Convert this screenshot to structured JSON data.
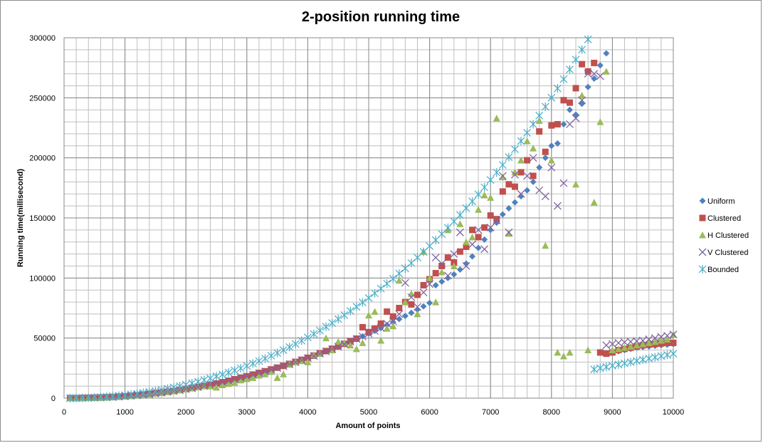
{
  "chart_data": {
    "type": "scatter",
    "title": "2-position running  time",
    "xlabel": "Amount of points",
    "ylabel": "Running time(millisecond)",
    "xlim": [
      0,
      10000
    ],
    "ylim": [
      0,
      300000
    ],
    "x_ticks": [
      0,
      1000,
      2000,
      3000,
      4000,
      5000,
      6000,
      7000,
      8000,
      9000,
      10000
    ],
    "x_tick_labels": [
      "0",
      "1000",
      "2000",
      "3000",
      "4000",
      "5000",
      "6000",
      "7000",
      "8000",
      "9000",
      "10000"
    ],
    "y_ticks": [
      0,
      50000,
      100000,
      150000,
      200000,
      250000,
      300000
    ],
    "y_tick_labels": [
      "0",
      "50000",
      "100000",
      "150000",
      "200000",
      "250000",
      "300000"
    ],
    "grid": true,
    "legend_position": "right",
    "series": [
      {
        "name": "Uniform",
        "marker": "diamond",
        "color": "#4f81bd",
        "x": [
          100,
          200,
          300,
          400,
          500,
          600,
          700,
          800,
          900,
          1000,
          1100,
          1200,
          1300,
          1400,
          1500,
          1600,
          1700,
          1800,
          1900,
          2000,
          2100,
          2200,
          2300,
          2400,
          2500,
          2600,
          2700,
          2800,
          2900,
          3000,
          3100,
          3200,
          3300,
          3400,
          3500,
          3600,
          3700,
          3800,
          3900,
          4000,
          4100,
          4200,
          4300,
          4400,
          4500,
          4600,
          4700,
          4800,
          4900,
          5000,
          5100,
          5200,
          5300,
          5400,
          5500,
          5600,
          5700,
          5800,
          5900,
          6000,
          6100,
          6200,
          6300,
          6400,
          6500,
          6600,
          6700,
          6800,
          6900,
          7000,
          7100,
          7200,
          7300,
          7400,
          7500,
          7600,
          7700,
          7800,
          7900,
          8000,
          8100,
          8200,
          8300,
          8400,
          8500,
          8600,
          8700,
          8800,
          8900,
          9000,
          9100,
          9200,
          9300,
          9400,
          9500,
          9600,
          9700,
          9800,
          9900,
          10000
        ],
        "y": [
          0,
          0,
          100,
          200,
          300,
          500,
          700,
          900,
          1200,
          1500,
          1900,
          2300,
          2800,
          3300,
          3900,
          4500,
          5200,
          5900,
          6700,
          7500,
          8300,
          9200,
          10100,
          11100,
          12100,
          13200,
          14300,
          15500,
          16700,
          18000,
          19300,
          20700,
          22100,
          23600,
          25100,
          26600,
          28200,
          29900,
          31600,
          33300,
          35100,
          37000,
          38900,
          40800,
          42800,
          44900,
          47000,
          49200,
          51400,
          53700,
          56000,
          58400,
          60800,
          63300,
          65800,
          68400,
          71000,
          73700,
          76400,
          79200,
          94000,
          97000,
          100000,
          103000,
          107000,
          112000,
          118000,
          125000,
          132000,
          140000,
          146000,
          153000,
          158000,
          163000,
          168000,
          173000,
          180000,
          192000,
          200000,
          210000,
          212000,
          228000,
          240000,
          236000,
          245000,
          259000,
          266000,
          277000,
          287000,
          38000,
          39000,
          40000,
          41000,
          42000,
          42500,
          43000,
          43500,
          44000,
          44500,
          45000
        ]
      },
      {
        "name": "Clustered",
        "marker": "square",
        "color": "#c0504d",
        "x": [
          100,
          200,
          300,
          400,
          500,
          600,
          700,
          800,
          900,
          1000,
          1100,
          1200,
          1300,
          1400,
          1500,
          1600,
          1700,
          1800,
          1900,
          2000,
          2100,
          2200,
          2300,
          2400,
          2500,
          2600,
          2700,
          2800,
          2900,
          3000,
          3100,
          3200,
          3300,
          3400,
          3500,
          3600,
          3700,
          3800,
          3900,
          4000,
          4100,
          4200,
          4300,
          4400,
          4500,
          4600,
          4700,
          4800,
          4900,
          5000,
          5100,
          5200,
          5300,
          5400,
          5500,
          5600,
          5700,
          5800,
          5900,
          6000,
          6100,
          6200,
          6300,
          6400,
          6500,
          6600,
          6700,
          6800,
          6900,
          7000,
          7100,
          7200,
          7300,
          7400,
          7500,
          7600,
          7700,
          7800,
          7900,
          8000,
          8100,
          8200,
          8300,
          8400,
          8500,
          8600,
          8700,
          8800,
          8900,
          9000,
          9100,
          9200,
          9300,
          9400,
          9500,
          9600,
          9700,
          9800,
          9900,
          10000
        ],
        "y": [
          0,
          0,
          200,
          300,
          400,
          600,
          800,
          1000,
          1300,
          1600,
          2000,
          2400,
          2900,
          3400,
          4000,
          4600,
          5300,
          6000,
          6800,
          7600,
          8400,
          9300,
          10200,
          11200,
          12200,
          13300,
          14500,
          15700,
          16900,
          18200,
          19600,
          21000,
          22400,
          23900,
          25400,
          26900,
          28500,
          30200,
          31900,
          33600,
          35400,
          37300,
          39200,
          41100,
          43100,
          45200,
          47300,
          49500,
          59000,
          55000,
          58000,
          62000,
          72000,
          68000,
          75000,
          80000,
          78000,
          86000,
          94000,
          99000,
          104000,
          110000,
          117000,
          113000,
          122000,
          126000,
          140000,
          134000,
          142000,
          152000,
          149000,
          172000,
          178000,
          176000,
          188000,
          198000,
          185000,
          222000,
          205000,
          227000,
          228000,
          248000,
          246000,
          258000,
          278000,
          272000,
          279000,
          38000,
          37000,
          38000,
          40000,
          41000,
          42000,
          43000,
          44000,
          44500,
          45000,
          45500,
          46000,
          46000
        ]
      },
      {
        "name": "H Clustered",
        "marker": "triangle",
        "color": "#9bbb59",
        "x": [
          100,
          200,
          300,
          400,
          500,
          600,
          700,
          800,
          900,
          1000,
          1100,
          1200,
          1300,
          1400,
          1500,
          1600,
          1700,
          1800,
          1900,
          2000,
          2100,
          2200,
          2300,
          2400,
          2500,
          2600,
          2700,
          2800,
          2900,
          3000,
          3100,
          3200,
          3300,
          3400,
          3500,
          3600,
          3700,
          3800,
          3900,
          4000,
          4100,
          4200,
          4300,
          4400,
          4500,
          4600,
          4700,
          4800,
          4900,
          5000,
          5100,
          5200,
          5300,
          5400,
          5500,
          5600,
          5700,
          5800,
          5900,
          6000,
          6100,
          6200,
          6300,
          6400,
          6500,
          6600,
          6700,
          6800,
          6900,
          7000,
          7100,
          7200,
          7300,
          7400,
          7500,
          7600,
          7700,
          7800,
          7900,
          8000,
          8100,
          8200,
          8300,
          8400,
          8500,
          8600,
          8700,
          8800,
          8900,
          9000,
          9100,
          9200,
          9300,
          9400,
          9500,
          9600,
          9700,
          9800,
          9900,
          10000
        ],
        "y": [
          0,
          0,
          100,
          200,
          300,
          400,
          600,
          800,
          1100,
          1400,
          1800,
          2200,
          2700,
          3200,
          3800,
          4400,
          5100,
          5800,
          6600,
          7400,
          8200,
          9100,
          10000,
          10000,
          9000,
          11000,
          12000,
          13000,
          15000,
          16000,
          17000,
          19000,
          20000,
          22000,
          17000,
          20000,
          28000,
          30000,
          31000,
          30000,
          36000,
          37000,
          50000,
          40000,
          47000,
          46000,
          44000,
          41000,
          46000,
          69000,
          72000,
          48000,
          58000,
          60000,
          98000,
          80000,
          87000,
          70000,
          122000,
          100000,
          80000,
          105000,
          140000,
          110000,
          145000,
          130000,
          134000,
          157000,
          169000,
          167000,
          233000,
          184000,
          137000,
          188000,
          198000,
          214000,
          208000,
          231000,
          127000,
          198000,
          38000,
          35000,
          38000,
          178000,
          252000,
          40000,
          163000,
          230000,
          272000,
          40000,
          41000,
          42000,
          43000,
          44000,
          45000,
          46000,
          47000,
          48000,
          49000,
          53000
        ]
      },
      {
        "name": "V Clustered",
        "marker": "x",
        "color": "#8064a2",
        "x": [
          100,
          200,
          300,
          400,
          500,
          600,
          700,
          800,
          900,
          1000,
          1100,
          1200,
          1300,
          1400,
          1500,
          1600,
          1700,
          1800,
          1900,
          2000,
          2100,
          2200,
          2300,
          2400,
          2500,
          2600,
          2700,
          2800,
          2900,
          3000,
          3100,
          3200,
          3300,
          3400,
          3500,
          3600,
          3700,
          3800,
          3900,
          4000,
          4100,
          4200,
          4300,
          4400,
          4500,
          4600,
          4700,
          4800,
          4900,
          5000,
          5100,
          5200,
          5300,
          5400,
          5500,
          5600,
          5700,
          5800,
          5900,
          6000,
          6100,
          6200,
          6300,
          6400,
          6500,
          6600,
          6700,
          6800,
          6900,
          7000,
          7100,
          7200,
          7300,
          7400,
          7500,
          7600,
          7700,
          7800,
          7900,
          8000,
          8100,
          8200,
          8300,
          8400,
          8500,
          8600,
          8700,
          8800,
          8900,
          9000,
          9100,
          9200,
          9300,
          9400,
          9500,
          9600,
          9700,
          9800,
          9900,
          10000
        ],
        "y": [
          0,
          0,
          100,
          200,
          300,
          500,
          700,
          900,
          1200,
          1500,
          1900,
          2300,
          2800,
          3300,
          3900,
          4500,
          5200,
          5900,
          6700,
          7500,
          8300,
          9200,
          10100,
          11100,
          12100,
          13200,
          14300,
          15500,
          16700,
          18000,
          19300,
          20700,
          22100,
          23600,
          25100,
          26600,
          28200,
          29900,
          31600,
          33300,
          35100,
          37000,
          38900,
          40800,
          42800,
          44900,
          47000,
          49200,
          51400,
          53700,
          56000,
          58400,
          62000,
          64000,
          70000,
          96000,
          84000,
          76000,
          88000,
          95000,
          117000,
          112000,
          102000,
          120000,
          138000,
          110000,
          128000,
          140000,
          124000,
          142000,
          148000,
          185000,
          138000,
          186000,
          170000,
          185000,
          200000,
          173000,
          168000,
          192000,
          160000,
          179000,
          228000,
          233000,
          248000,
          270000,
          270000,
          268000,
          44000,
          45000,
          46000,
          46500,
          47000,
          47500,
          48000,
          49000,
          50000,
          51000,
          52000,
          53000
        ]
      },
      {
        "name": "Bounded",
        "marker": "star",
        "color": "#4bacc6",
        "x": [
          100,
          200,
          300,
          400,
          500,
          600,
          700,
          800,
          900,
          1000,
          1100,
          1200,
          1300,
          1400,
          1500,
          1600,
          1700,
          1800,
          1900,
          2000,
          2100,
          2200,
          2300,
          2400,
          2500,
          2600,
          2700,
          2800,
          2900,
          3000,
          3100,
          3200,
          3300,
          3400,
          3500,
          3600,
          3700,
          3800,
          3900,
          4000,
          4100,
          4200,
          4300,
          4400,
          4500,
          4600,
          4700,
          4800,
          4900,
          5000,
          5100,
          5200,
          5300,
          5400,
          5500,
          5600,
          5700,
          5800,
          5900,
          6000,
          6100,
          6200,
          6300,
          6400,
          6500,
          6600,
          6700,
          6800,
          6900,
          7000,
          7100,
          7200,
          7300,
          7400,
          7500,
          7600,
          7700,
          7800,
          7900,
          8000,
          8100,
          8200,
          8300,
          8400,
          8500,
          8600,
          8700,
          8800,
          8900,
          9000,
          9100,
          9200,
          9300,
          9400,
          9500,
          9600,
          9700,
          9800,
          9900,
          10000
        ],
        "y": [
          0,
          100,
          200,
          400,
          600,
          900,
          1200,
          1600,
          2000,
          2500,
          3100,
          3700,
          4400,
          5200,
          6000,
          6900,
          7900,
          8900,
          10000,
          11200,
          12400,
          13700,
          15100,
          16500,
          18100,
          19700,
          21300,
          23100,
          24900,
          26800,
          28800,
          30900,
          33000,
          35300,
          37600,
          40000,
          42500,
          45100,
          47800,
          50500,
          53400,
          56300,
          59400,
          62500,
          65800,
          69100,
          72500,
          76100,
          79700,
          83400,
          87300,
          91200,
          95300,
          99400,
          103700,
          108000,
          112500,
          117000,
          121800,
          126600,
          131600,
          136600,
          141800,
          147100,
          152500,
          158100,
          163800,
          169600,
          175500,
          181600,
          187800,
          194100,
          200600,
          207200,
          214000,
          220900,
          228000,
          235200,
          242600,
          250100,
          257800,
          265600,
          273600,
          281800,
          290100,
          298600,
          24000,
          25000,
          26000,
          27000,
          28000,
          29000,
          30000,
          31000,
          32000,
          33000,
          34000,
          35000,
          36000,
          37000
        ]
      }
    ]
  }
}
